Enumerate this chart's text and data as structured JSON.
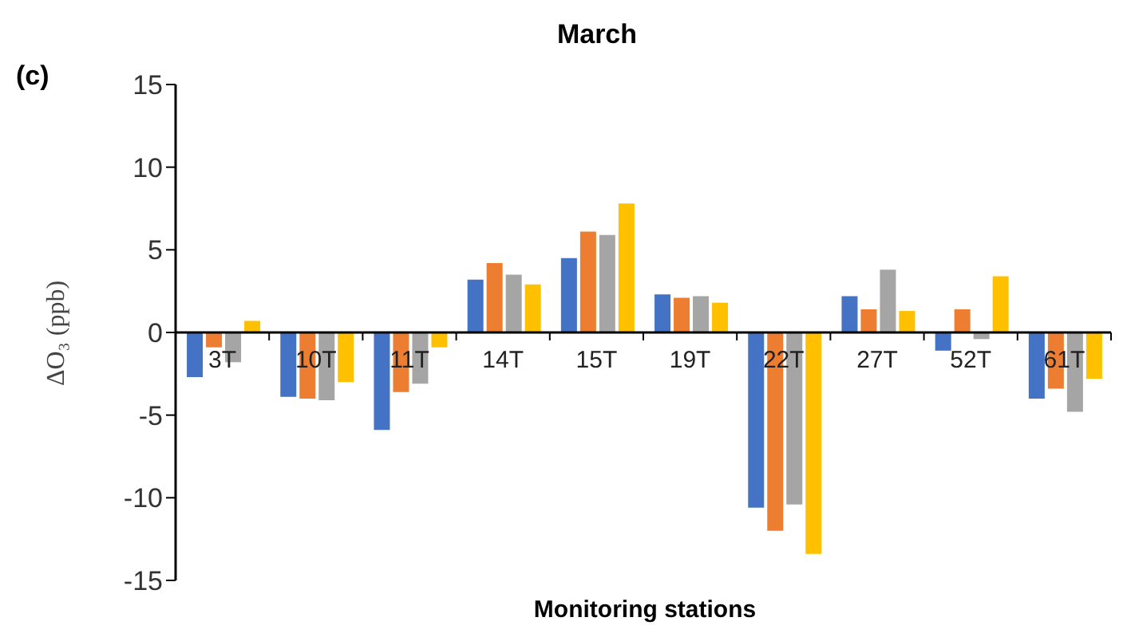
{
  "chart_data": {
    "type": "bar",
    "title": "March",
    "xlabel": "Monitoring stations",
    "ylabel": "ΔO₃ (ppb)",
    "annotations": [
      "(c)"
    ],
    "categories": [
      "3T",
      "10T",
      "11T",
      "14T",
      "15T",
      "19T",
      "22T",
      "27T",
      "52T",
      "61T"
    ],
    "series": [
      {
        "color": "#4472c4",
        "values": [
          -2.7,
          -3.9,
          -5.9,
          3.2,
          4.5,
          2.3,
          -10.6,
          2.2,
          -1.1,
          -4.0
        ]
      },
      {
        "color": "#ed7d31",
        "values": [
          -0.9,
          -4.0,
          -3.6,
          4.2,
          6.1,
          2.1,
          -12.0,
          1.4,
          1.4,
          -3.4
        ]
      },
      {
        "color": "#a5a5a5",
        "values": [
          -1.8,
          -4.1,
          -3.1,
          3.5,
          5.9,
          2.2,
          -10.4,
          3.8,
          -0.4,
          -4.8
        ]
      },
      {
        "color": "#ffc000",
        "values": [
          0.7,
          -3.0,
          -0.9,
          2.9,
          7.8,
          1.8,
          -13.4,
          1.3,
          3.4,
          -2.8
        ]
      }
    ],
    "ylim": [
      -15,
      15
    ],
    "yticks": [
      -15,
      -10,
      -5,
      0,
      5,
      10,
      15
    ],
    "grid": false,
    "legend": false
  }
}
